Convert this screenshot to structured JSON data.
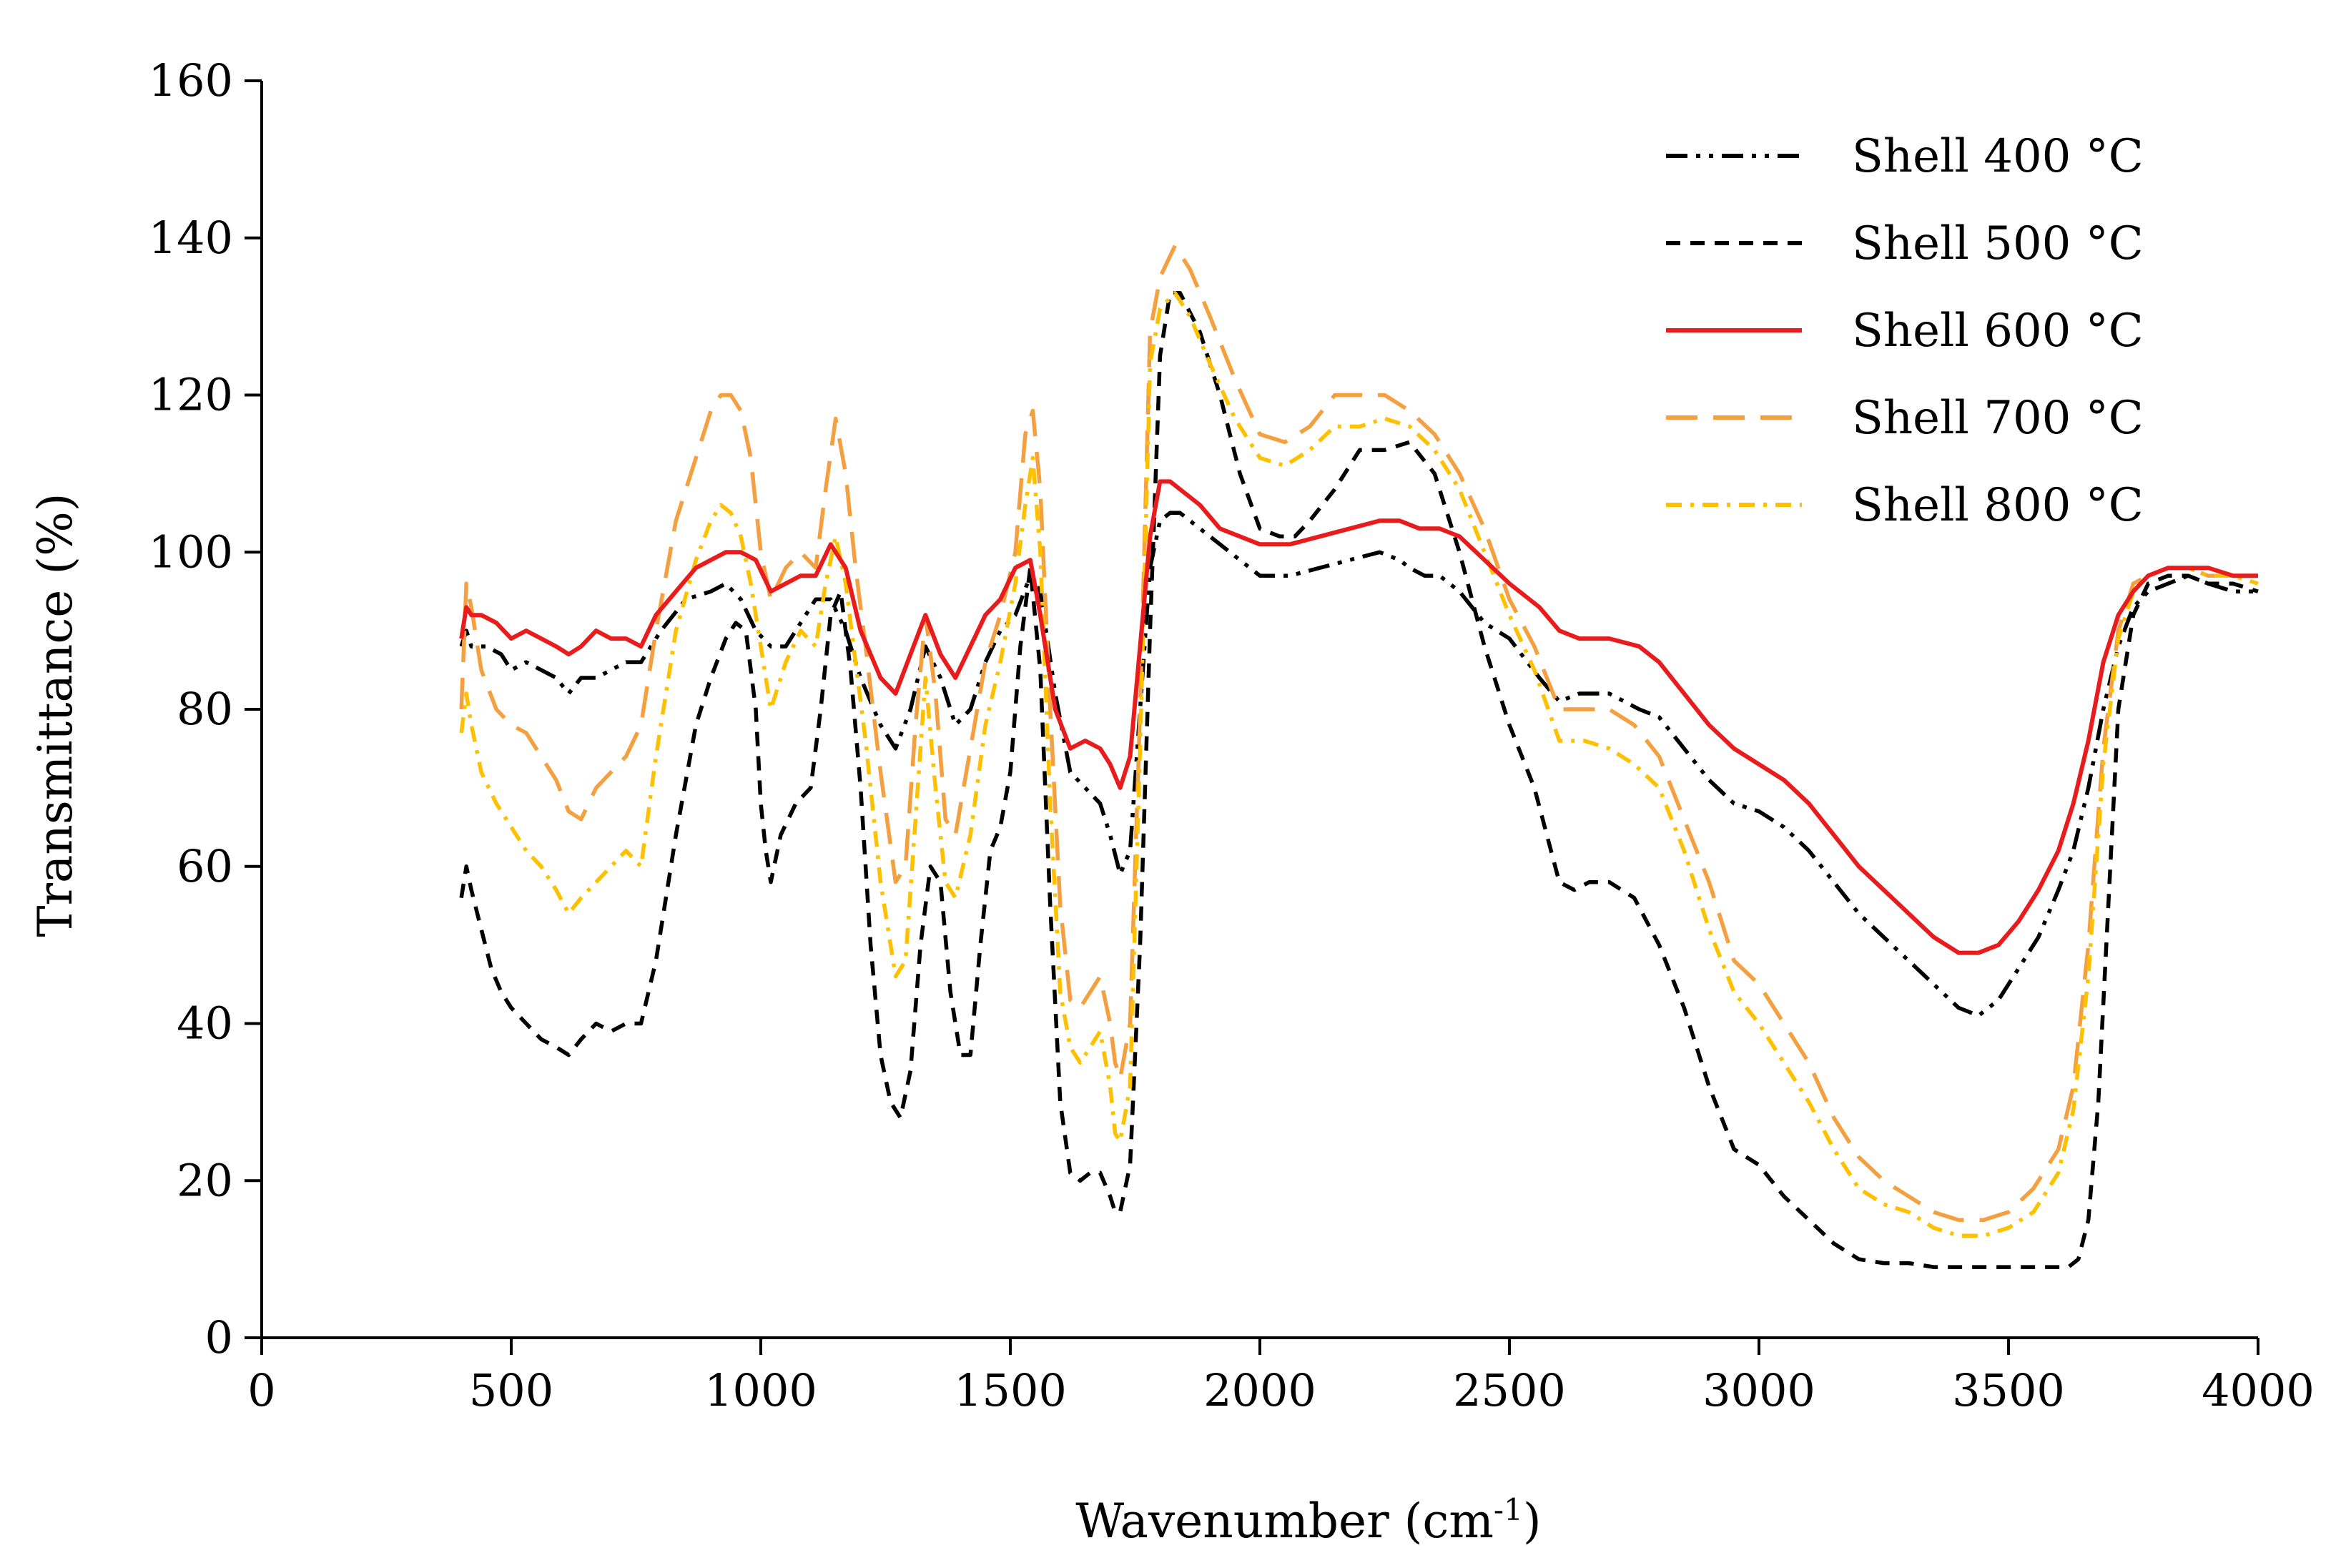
{
  "chart_data": {
    "type": "line",
    "title": "",
    "xlabel": "Wavenumber (cm",
    "xlabel_sup": "-1",
    "xlabel_close": ")",
    "ylabel": "Transmittance (%)",
    "xlim": [
      0,
      4000
    ],
    "ylim": [
      0,
      160
    ],
    "xticks": [
      0,
      500,
      1000,
      1500,
      2000,
      2500,
      3000,
      3500,
      4000
    ],
    "yticks": [
      0,
      20,
      40,
      60,
      80,
      100,
      120,
      140,
      160
    ],
    "grid": false,
    "legend_position": "top-right",
    "series": [
      {
        "name": "Shell 400 °C",
        "color": "#000000",
        "dash": "dashdotdot",
        "x": [
          400,
          410,
          420,
          450,
          480,
          500,
          530,
          560,
          590,
          615,
          640,
          670,
          700,
          730,
          760,
          800,
          850,
          900,
          930,
          960,
          990,
          1020,
          1050,
          1080,
          1110,
          1140,
          1170,
          1200,
          1240,
          1270,
          1300,
          1330,
          1360,
          1390,
          1420,
          1450,
          1480,
          1510,
          1540,
          1560,
          1590,
          1620,
          1650,
          1680,
          1700,
          1720,
          1740,
          1760,
          1780,
          1800,
          1820,
          1840,
          1880,
          1920,
          1960,
          2000,
          2060,
          2120,
          2180,
          2240,
          2280,
          2300,
          2330,
          2360,
          2400,
          2450,
          2500,
          2560,
          2600,
          2640,
          2700,
          2760,
          2800,
          2850,
          2900,
          2950,
          3000,
          3050,
          3100,
          3150,
          3200,
          3250,
          3300,
          3350,
          3400,
          3440,
          3480,
          3520,
          3560,
          3600,
          3630,
          3660,
          3690,
          3720,
          3750,
          3780,
          3820,
          3860,
          3900,
          3950,
          4000
        ],
        "y": [
          88,
          90,
          88,
          88,
          87,
          85,
          86,
          85,
          84,
          82,
          84,
          84,
          85,
          86,
          86,
          90,
          94,
          95,
          96,
          94,
          90,
          88,
          88,
          91,
          94,
          94,
          90,
          84,
          78,
          75,
          80,
          88,
          84,
          78,
          80,
          86,
          90,
          92,
          97,
          95,
          82,
          72,
          70,
          68,
          64,
          59,
          62,
          80,
          98,
          104,
          105,
          105,
          103,
          101,
          99,
          97,
          97,
          98,
          99,
          100,
          99,
          98,
          97,
          97,
          95,
          91,
          89,
          84,
          81,
          82,
          82,
          80,
          79,
          75,
          71,
          68,
          67,
          65,
          62,
          58,
          54,
          51,
          48,
          45,
          42,
          41,
          43,
          47,
          51,
          57,
          62,
          70,
          80,
          88,
          93,
          95,
          96,
          97,
          96,
          95,
          95
        ]
      },
      {
        "name": "Shell 500 °C",
        "color": "#000000",
        "dash": "dashed",
        "x": [
          400,
          410,
          420,
          440,
          460,
          480,
          500,
          530,
          560,
          590,
          615,
          640,
          670,
          700,
          730,
          760,
          790,
          830,
          870,
          900,
          930,
          950,
          970,
          990,
          1000,
          1010,
          1020,
          1040,
          1070,
          1100,
          1120,
          1140,
          1160,
          1180,
          1200,
          1220,
          1240,
          1260,
          1280,
          1300,
          1320,
          1340,
          1360,
          1380,
          1400,
          1420,
          1440,
          1460,
          1480,
          1500,
          1520,
          1540,
          1560,
          1580,
          1600,
          1620,
          1640,
          1660,
          1680,
          1700,
          1710,
          1720,
          1740,
          1760,
          1780,
          1800,
          1820,
          1840,
          1880,
          1920,
          1960,
          2000,
          2040,
          2070,
          2100,
          2150,
          2200,
          2250,
          2300,
          2350,
          2400,
          2450,
          2500,
          2550,
          2600,
          2630,
          2660,
          2700,
          2750,
          2800,
          2850,
          2900,
          2950,
          3000,
          3050,
          3100,
          3150,
          3200,
          3250,
          3300,
          3350,
          3400,
          3450,
          3500,
          3550,
          3580,
          3600,
          3620,
          3640,
          3660,
          3680,
          3700,
          3720,
          3750,
          3780,
          3820,
          3860,
          3900,
          3950,
          4000
        ],
        "y": [
          56,
          60,
          57,
          52,
          47,
          44,
          42,
          40,
          38,
          37,
          36,
          38,
          40,
          39,
          40,
          40,
          48,
          64,
          78,
          84,
          89,
          91,
          90,
          80,
          68,
          62,
          58,
          64,
          68,
          70,
          80,
          92,
          95,
          85,
          70,
          50,
          36,
          30,
          28,
          34,
          50,
          60,
          58,
          44,
          36,
          36,
          50,
          62,
          65,
          72,
          88,
          98,
          85,
          55,
          30,
          21,
          20,
          21,
          21,
          18,
          16,
          16,
          22,
          50,
          90,
          125,
          133,
          133,
          128,
          120,
          110,
          103,
          102,
          102,
          104,
          108,
          113,
          113,
          114,
          110,
          100,
          88,
          78,
          70,
          58,
          57,
          58,
          58,
          56,
          50,
          42,
          32,
          24,
          22,
          18,
          15,
          12,
          10,
          9.5,
          9.5,
          9,
          9,
          9,
          9,
          9,
          9,
          9,
          9,
          10,
          15,
          30,
          55,
          80,
          92,
          96,
          97,
          97,
          96,
          96,
          95
        ]
      },
      {
        "name": "Shell 600 °C",
        "color": "#e81c1c",
        "dash": "solid",
        "x": [
          400,
          410,
          420,
          440,
          470,
          500,
          530,
          560,
          590,
          615,
          640,
          670,
          700,
          730,
          760,
          790,
          830,
          870,
          900,
          930,
          960,
          990,
          1020,
          1050,
          1080,
          1110,
          1140,
          1170,
          1200,
          1240,
          1270,
          1300,
          1330,
          1360,
          1390,
          1420,
          1450,
          1480,
          1510,
          1540,
          1560,
          1590,
          1620,
          1650,
          1680,
          1700,
          1720,
          1740,
          1760,
          1780,
          1800,
          1820,
          1840,
          1880,
          1920,
          1960,
          2000,
          2060,
          2120,
          2180,
          2240,
          2280,
          2320,
          2360,
          2400,
          2450,
          2500,
          2560,
          2600,
          2640,
          2700,
          2760,
          2800,
          2850,
          2900,
          2950,
          3000,
          3050,
          3100,
          3150,
          3200,
          3250,
          3300,
          3350,
          3400,
          3440,
          3480,
          3520,
          3560,
          3600,
          3630,
          3660,
          3690,
          3720,
          3750,
          3780,
          3820,
          3860,
          3900,
          3950,
          4000
        ],
        "y": [
          89,
          93,
          92,
          92,
          91,
          89,
          90,
          89,
          88,
          87,
          88,
          90,
          89,
          89,
          88,
          92,
          95,
          98,
          99,
          100,
          100,
          99,
          95,
          96,
          97,
          97,
          101,
          98,
          90,
          84,
          82,
          87,
          92,
          87,
          84,
          88,
          92,
          94,
          98,
          99,
          92,
          80,
          75,
          76,
          75,
          73,
          70,
          74,
          88,
          102,
          109,
          109,
          108,
          106,
          103,
          102,
          101,
          101,
          102,
          103,
          104,
          104,
          103,
          103,
          102,
          99,
          96,
          93,
          90,
          89,
          89,
          88,
          86,
          82,
          78,
          75,
          73,
          71,
          68,
          64,
          60,
          57,
          54,
          51,
          49,
          49,
          50,
          53,
          57,
          62,
          68,
          76,
          86,
          92,
          95,
          97,
          98,
          98,
          98,
          97,
          97
        ]
      },
      {
        "name": "Shell 700 °C",
        "color": "#f4a040",
        "dash": "longdash",
        "x": [
          400,
          410,
          420,
          440,
          470,
          500,
          530,
          560,
          590,
          615,
          640,
          670,
          700,
          730,
          760,
          790,
          830,
          870,
          900,
          920,
          940,
          960,
          980,
          1000,
          1020,
          1050,
          1080,
          1110,
          1130,
          1150,
          1170,
          1190,
          1210,
          1240,
          1270,
          1290,
          1310,
          1330,
          1350,
          1370,
          1390,
          1420,
          1450,
          1480,
          1510,
          1530,
          1545,
          1560,
          1580,
          1600,
          1620,
          1640,
          1660,
          1680,
          1700,
          1710,
          1720,
          1740,
          1760,
          1780,
          1800,
          1830,
          1860,
          1900,
          1950,
          2000,
          2050,
          2100,
          2150,
          2200,
          2250,
          2300,
          2350,
          2400,
          2450,
          2500,
          2550,
          2600,
          2650,
          2700,
          2750,
          2800,
          2850,
          2900,
          2950,
          3000,
          3050,
          3100,
          3150,
          3200,
          3250,
          3300,
          3350,
          3400,
          3450,
          3500,
          3550,
          3600,
          3630,
          3660,
          3690,
          3720,
          3750,
          3780,
          3820,
          3860,
          3900,
          3950,
          4000
        ],
        "y": [
          80,
          96,
          93,
          85,
          80,
          78,
          77,
          74,
          71,
          67,
          66,
          70,
          72,
          74,
          78,
          90,
          104,
          112,
          118,
          120,
          120,
          118,
          112,
          100,
          94,
          98,
          100,
          98,
          108,
          117,
          110,
          98,
          88,
          72,
          58,
          60,
          78,
          92,
          82,
          66,
          64,
          75,
          86,
          92,
          100,
          115,
          118,
          108,
          80,
          55,
          43,
          42,
          44,
          46,
          40,
          35,
          33,
          40,
          80,
          128,
          135,
          139,
          136,
          130,
          122,
          115,
          114,
          116,
          120,
          120,
          120,
          118,
          115,
          110,
          103,
          94,
          88,
          80,
          80,
          80,
          78,
          74,
          66,
          58,
          48,
          45,
          40,
          35,
          28,
          23,
          20,
          18,
          16,
          15,
          15,
          16,
          19,
          24,
          32,
          50,
          75,
          90,
          96,
          97,
          98,
          98,
          97,
          97,
          97
        ]
      },
      {
        "name": "Shell 800 °C",
        "color": "#ffc000",
        "dash": "dashdot",
        "x": [
          400,
          410,
          420,
          440,
          470,
          500,
          530,
          560,
          590,
          615,
          640,
          670,
          700,
          730,
          760,
          790,
          830,
          870,
          900,
          920,
          940,
          960,
          980,
          1000,
          1020,
          1050,
          1080,
          1110,
          1130,
          1150,
          1170,
          1190,
          1210,
          1240,
          1270,
          1290,
          1310,
          1330,
          1350,
          1370,
          1390,
          1420,
          1450,
          1480,
          1510,
          1530,
          1545,
          1560,
          1580,
          1600,
          1620,
          1640,
          1660,
          1680,
          1700,
          1710,
          1720,
          1740,
          1760,
          1780,
          1800,
          1830,
          1860,
          1900,
          1950,
          2000,
          2050,
          2100,
          2150,
          2200,
          2250,
          2300,
          2350,
          2400,
          2450,
          2500,
          2550,
          2600,
          2650,
          2700,
          2750,
          2800,
          2850,
          2900,
          2950,
          3000,
          3050,
          3100,
          3150,
          3200,
          3250,
          3300,
          3350,
          3400,
          3450,
          3500,
          3550,
          3600,
          3630,
          3660,
          3690,
          3720,
          3750,
          3780,
          3820,
          3860,
          3900,
          3950,
          4000
        ],
        "y": [
          77,
          82,
          78,
          72,
          68,
          65,
          62,
          60,
          57,
          54,
          56,
          58,
          60,
          62,
          60,
          74,
          90,
          99,
          104,
          106,
          105,
          102,
          96,
          88,
          80,
          86,
          90,
          88,
          96,
          102,
          96,
          86,
          76,
          58,
          46,
          48,
          66,
          84,
          70,
          58,
          56,
          64,
          78,
          86,
          96,
          106,
          112,
          100,
          68,
          44,
          37,
          35,
          37,
          39,
          32,
          26,
          25,
          32,
          75,
          124,
          131,
          133,
          130,
          124,
          117,
          112,
          111,
          113,
          116,
          116,
          117,
          116,
          113,
          108,
          100,
          92,
          85,
          76,
          76,
          75,
          73,
          70,
          62,
          52,
          44,
          40,
          35,
          30,
          24,
          19,
          17,
          16,
          14,
          13,
          13,
          14,
          16,
          21,
          29,
          46,
          73,
          89,
          95,
          97,
          98,
          98,
          97,
          97,
          96
        ]
      }
    ]
  }
}
